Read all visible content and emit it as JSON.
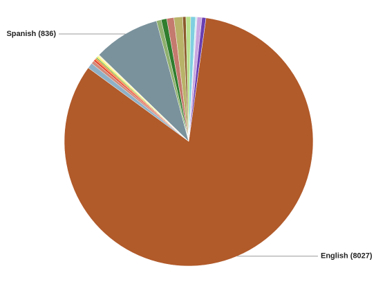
{
  "chart_data": {
    "type": "pie",
    "categories": [
      "English (8027)",
      null,
      null,
      null,
      null,
      null,
      null,
      null,
      "Spanish (836)",
      null,
      null,
      null,
      null,
      null,
      null,
      null,
      null,
      null,
      null
    ],
    "values": [
      8027,
      70,
      40,
      25,
      20,
      15,
      20,
      20,
      836,
      60,
      70,
      90,
      110,
      40,
      60,
      60,
      20,
      60,
      50
    ],
    "colors": [
      "#b15a2a",
      "#8fb1c7",
      "#d28b7a",
      "#e8452f",
      "#f08a3c",
      "#7ab648",
      "#f8f56a",
      "#fff7c8",
      "#7a929c",
      "#8fb06f",
      "#2f7d2e",
      "#c47a6e",
      "#b9b36a",
      "#8a5a2b",
      "#b8e08a",
      "#7fd0e0",
      "#cfe8f0",
      "#c9a6e0",
      "#6a3fb0"
    ]
  }
}
